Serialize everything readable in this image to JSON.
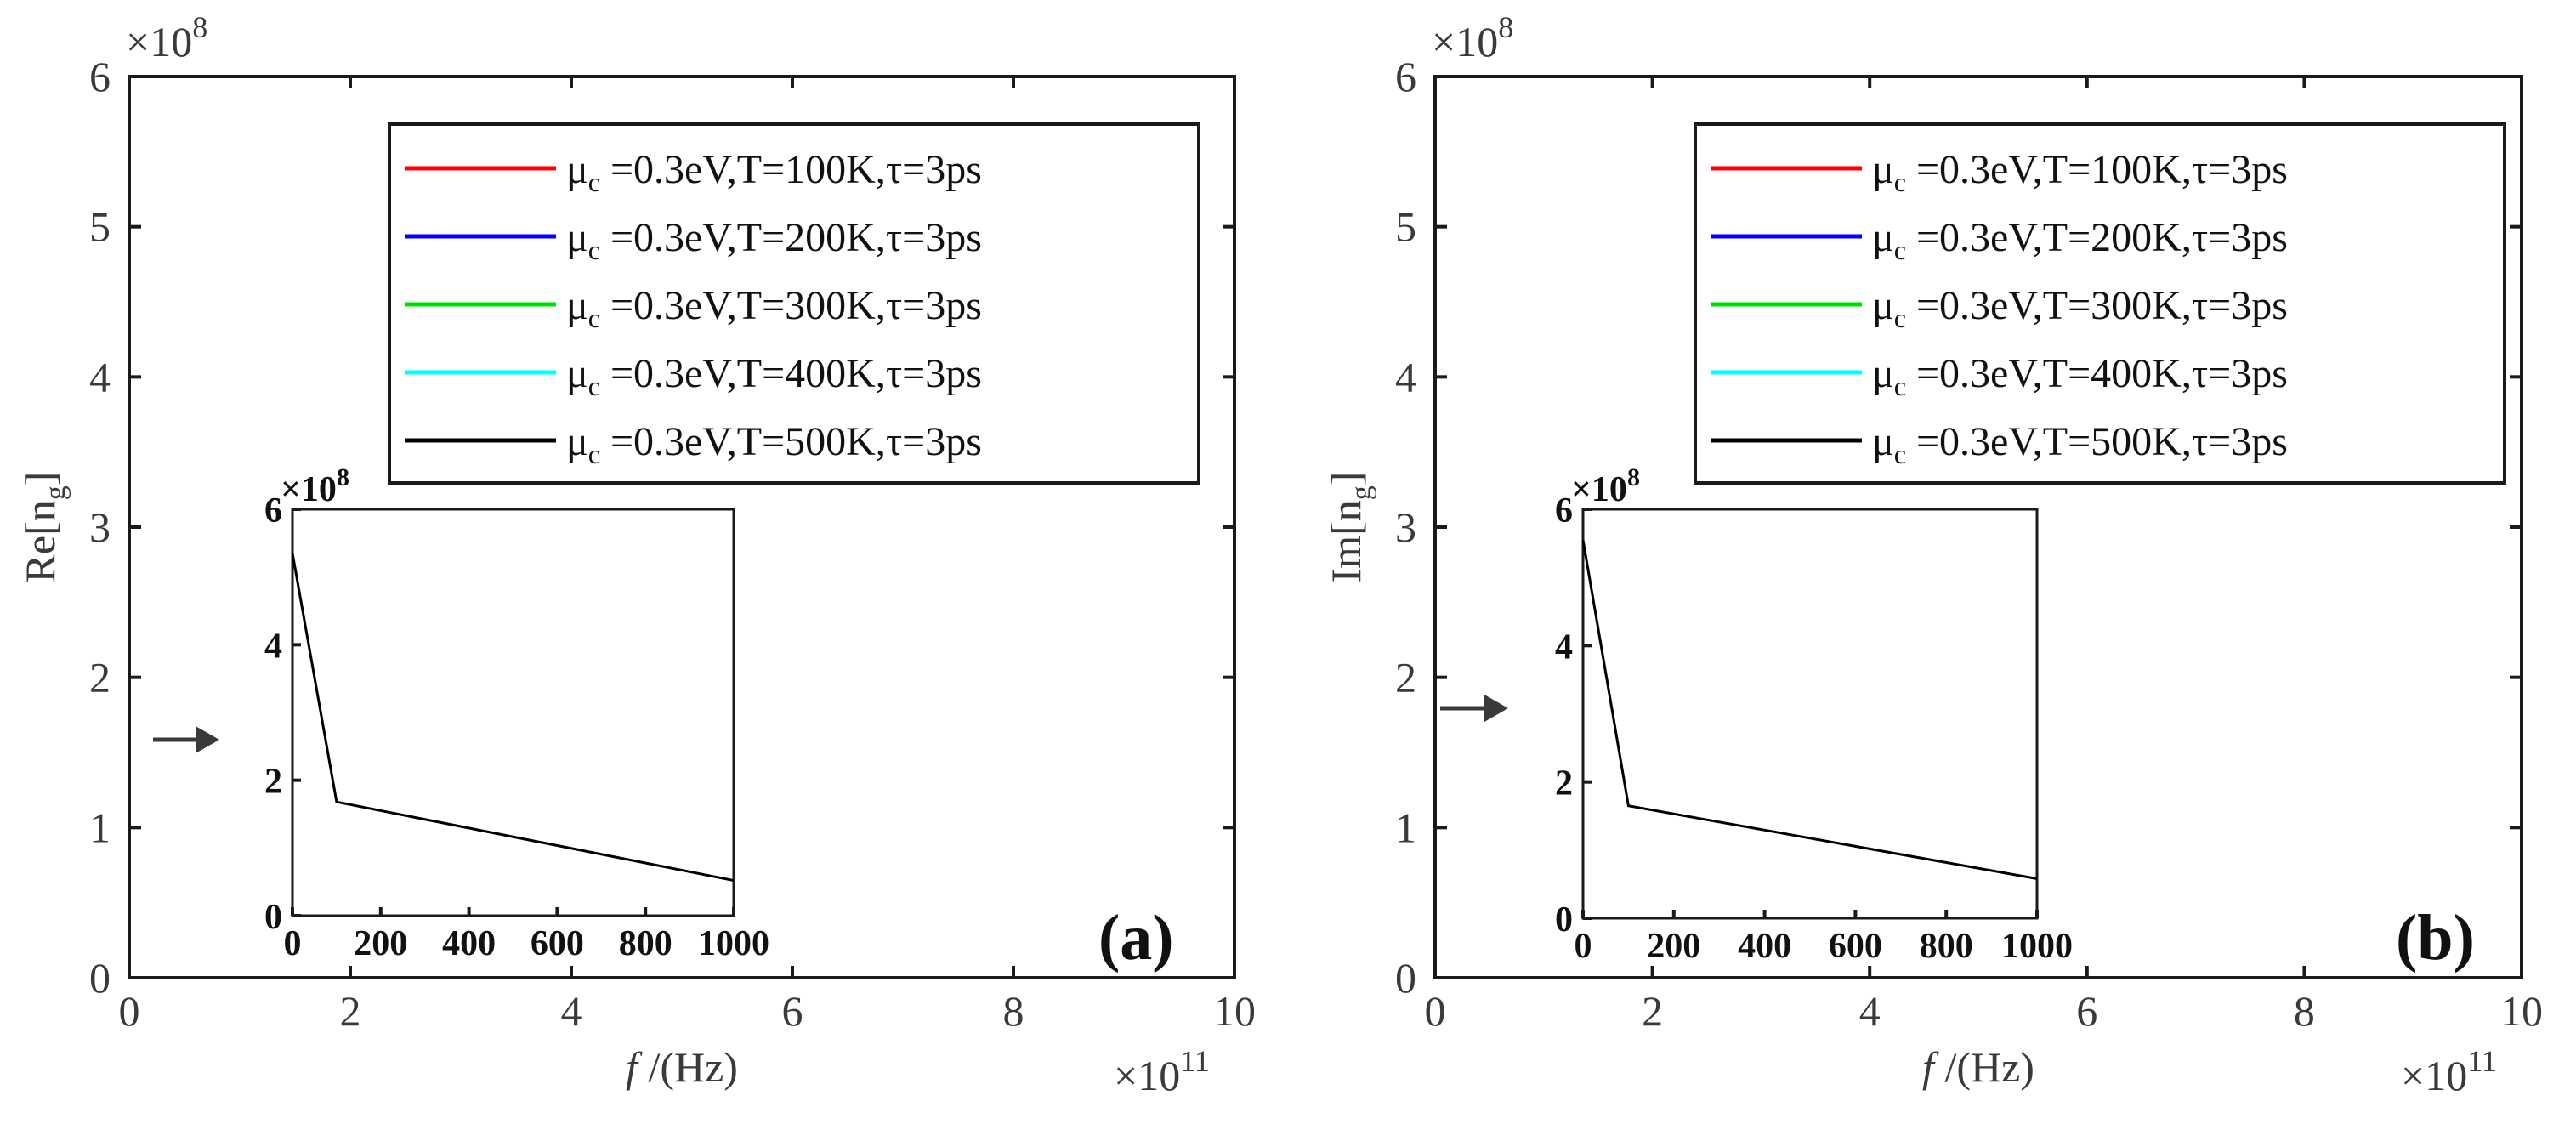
{
  "chart_data": [
    {
      "type": "line",
      "panel_label": "(a)",
      "ylabel_main": "Re[n",
      "ylabel_sub": "g",
      "ylabel_end": "]",
      "xlabel_italic": "f",
      "xlabel_rest": " /(Hz)",
      "x_ticks": [
        "0",
        "2",
        "4",
        "6",
        "8",
        "10"
      ],
      "y_ticks": [
        "0",
        "1",
        "2",
        "3",
        "4",
        "5",
        "6"
      ],
      "x_multiplier": "×10",
      "x_multiplier_exp": "11",
      "y_multiplier": "×10",
      "y_multiplier_exp": "8",
      "xlim": [
        0,
        10
      ],
      "ylim": [
        0,
        6
      ],
      "series": [
        {
          "name": "μc =0.3eV,T=100K,τ=3ps",
          "color": "#ff0000",
          "x": [],
          "y": []
        },
        {
          "name": "μc =0.3eV,T=200K,τ=3ps",
          "color": "#0000ff",
          "x": [],
          "y": []
        },
        {
          "name": "μc =0.3eV,T=300K,τ=3ps",
          "color": "#00dd00",
          "x": [],
          "y": []
        },
        {
          "name": "μc =0.3eV,T=400K,τ=3ps",
          "color": "#00ffff",
          "x": [],
          "y": []
        },
        {
          "name": "μc =0.3eV,T=500K,τ=3ps",
          "color": "#000000",
          "x": [],
          "y": []
        }
      ],
      "legend": [
        {
          "mu": "μ",
          "sub": "c",
          "rest": " =0.3eV,T=100K,τ=3ps",
          "color": "#ff0000"
        },
        {
          "mu": "μ",
          "sub": "c",
          "rest": " =0.3eV,T=200K,τ=3ps",
          "color": "#0000ff"
        },
        {
          "mu": "μ",
          "sub": "c",
          "rest": " =0.3eV,T=300K,τ=3ps",
          "color": "#00dd00"
        },
        {
          "mu": "μ",
          "sub": "c",
          "rest": " =0.3eV,T=400K,τ=3ps",
          "color": "#00ffff"
        },
        {
          "mu": "μ",
          "sub": "c",
          "rest": " =0.3eV,T=500K,τ=3ps",
          "color": "#000000"
        }
      ],
      "legend_position": "top-right",
      "inset": {
        "x_ticks": [
          "0",
          "200",
          "400",
          "600",
          "800",
          "1000"
        ],
        "y_ticks": [
          "0",
          "2",
          "4",
          "6"
        ],
        "y_multiplier": "×10",
        "y_multiplier_exp": "8",
        "xlim": [
          0,
          1000
        ],
        "ylim": [
          0,
          6
        ],
        "x": [
          0,
          100,
          1000
        ],
        "y": [
          5.35,
          1.68,
          0.52
        ]
      }
    },
    {
      "type": "line",
      "panel_label": "(b)",
      "ylabel_main": "Im[n",
      "ylabel_sub": "g",
      "ylabel_end": "]",
      "xlabel_italic": "f",
      "xlabel_rest": " /(Hz)",
      "x_ticks": [
        "0",
        "2",
        "4",
        "6",
        "8",
        "10"
      ],
      "y_ticks": [
        "0",
        "1",
        "2",
        "3",
        "4",
        "5",
        "6"
      ],
      "x_multiplier": "×10",
      "x_multiplier_exp": "11",
      "y_multiplier": "×10",
      "y_multiplier_exp": "8",
      "xlim": [
        0,
        10
      ],
      "ylim": [
        0,
        6
      ],
      "series": [
        {
          "name": "μc =0.3eV,T=100K,τ=3ps",
          "color": "#ff0000",
          "x": [],
          "y": []
        },
        {
          "name": "μc =0.3eV,T=200K,τ=3ps",
          "color": "#0000ff",
          "x": [],
          "y": []
        },
        {
          "name": "μc =0.3eV,T=300K,τ=3ps",
          "color": "#00dd00",
          "x": [],
          "y": []
        },
        {
          "name": "μc =0.3eV,T=400K,τ=3ps",
          "color": "#00ffff",
          "x": [],
          "y": []
        },
        {
          "name": "μc =0.3eV,T=500K,τ=3ps",
          "color": "#000000",
          "x": [],
          "y": []
        }
      ],
      "legend": [
        {
          "mu": "μ",
          "sub": "c",
          "rest": " =0.3eV,T=100K,τ=3ps",
          "color": "#ff0000"
        },
        {
          "mu": "μ",
          "sub": "c",
          "rest": " =0.3eV,T=200K,τ=3ps",
          "color": "#0000ff"
        },
        {
          "mu": "μ",
          "sub": "c",
          "rest": " =0.3eV,T=300K,τ=3ps",
          "color": "#00dd00"
        },
        {
          "mu": "μ",
          "sub": "c",
          "rest": " =0.3eV,T=400K,τ=3ps",
          "color": "#00ffff"
        },
        {
          "mu": "μ",
          "sub": "c",
          "rest": " =0.3eV,T=500K,τ=3ps",
          "color": "#000000"
        }
      ],
      "legend_position": "top-right",
      "inset": {
        "x_ticks": [
          "0",
          "200",
          "400",
          "600",
          "800",
          "1000"
        ],
        "y_ticks": [
          "0",
          "2",
          "4",
          "6"
        ],
        "y_multiplier": "×10",
        "y_multiplier_exp": "8",
        "xlim": [
          0,
          1000
        ],
        "ylim": [
          0,
          6
        ],
        "x": [
          0,
          100,
          1000
        ],
        "y": [
          5.55,
          1.65,
          0.58
        ]
      }
    }
  ]
}
